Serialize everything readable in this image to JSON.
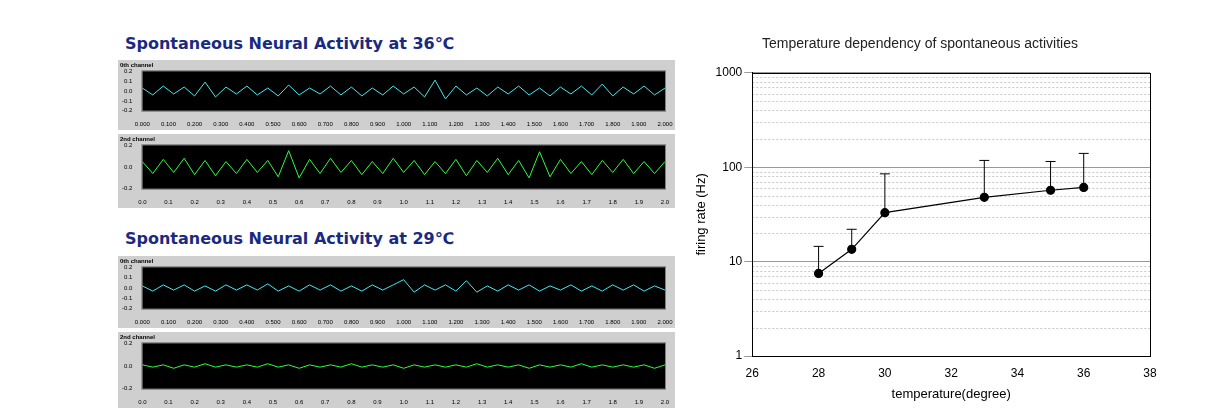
{
  "chart_data": [
    {
      "type": "line",
      "title": "Spontaneous Neural Activity at 36℃",
      "subtitle": "0th channel",
      "color": "#40e8f0",
      "x": [
        0,
        0.04,
        0.08,
        0.12,
        0.16,
        0.2,
        0.24,
        0.28,
        0.32,
        0.36,
        0.4,
        0.44,
        0.48,
        0.52,
        0.56,
        0.6,
        0.64,
        0.68,
        0.72,
        0.76,
        0.8,
        0.84,
        0.88,
        0.92,
        0.96,
        1,
        1.04,
        1.08,
        1.12,
        1.16,
        1.2,
        1.24,
        1.28,
        1.32,
        1.36,
        1.4,
        1.44,
        1.48,
        1.52,
        1.56,
        1.6,
        1.64,
        1.68,
        1.72,
        1.76,
        1.8,
        1.84,
        1.88,
        1.92,
        1.96,
        2
      ],
      "values": [
        0.03,
        -0.04,
        0.05,
        -0.03,
        0.04,
        -0.05,
        0.09,
        -0.06,
        0.04,
        -0.03,
        0.05,
        -0.04,
        0.03,
        -0.05,
        0.06,
        -0.04,
        0.03,
        -0.03,
        0.05,
        -0.04,
        0.04,
        -0.05,
        0.03,
        -0.04,
        0.05,
        -0.03,
        0.04,
        -0.06,
        0.11,
        -0.08,
        0.05,
        -0.04,
        0.03,
        -0.05,
        0.04,
        -0.03,
        0.05,
        -0.04,
        0.03,
        -0.05,
        0.04,
        -0.03,
        0.05,
        -0.04,
        0.07,
        -0.05,
        0.04,
        -0.03,
        0.05,
        -0.04,
        0.03
      ],
      "xlim": [
        0,
        2
      ],
      "xticks": [
        {
          "value": 0,
          "label": "0.000"
        },
        {
          "value": 0.1,
          "label": "0.100"
        },
        {
          "value": 0.2,
          "label": "0.200"
        },
        {
          "value": 0.3,
          "label": "0.300"
        },
        {
          "value": 0.4,
          "label": "0.400"
        },
        {
          "value": 0.5,
          "label": "0.500"
        },
        {
          "value": 0.6,
          "label": "0.600"
        },
        {
          "value": 0.7,
          "label": "0.700"
        },
        {
          "value": 0.8,
          "label": "0.800"
        },
        {
          "value": 0.9,
          "label": "0.900"
        },
        {
          "value": 1,
          "label": "1.000"
        },
        {
          "value": 1.1,
          "label": "1.100"
        },
        {
          "value": 1.2,
          "label": "1.200"
        },
        {
          "value": 1.3,
          "label": "1.300"
        },
        {
          "value": 1.4,
          "label": "1.400"
        },
        {
          "value": 1.5,
          "label": "1.500"
        },
        {
          "value": 1.6,
          "label": "1.600"
        },
        {
          "value": 1.7,
          "label": "1.700"
        },
        {
          "value": 1.8,
          "label": "1.800"
        },
        {
          "value": 1.9,
          "label": "1.900"
        },
        {
          "value": 2,
          "label": "2.000"
        }
      ],
      "ylim": [
        -0.2,
        0.2
      ],
      "yticks": [
        -0.2,
        -0.1,
        {
          "value": 0,
          "label": "0.0"
        },
        0.1,
        0.2
      ]
    },
    {
      "type": "line",
      "subtitle": "2nd channel",
      "color": "#2bff3a",
      "x": [
        0,
        0.04,
        0.08,
        0.12,
        0.16,
        0.2,
        0.24,
        0.28,
        0.32,
        0.36,
        0.4,
        0.44,
        0.48,
        0.52,
        0.56,
        0.6,
        0.64,
        0.68,
        0.72,
        0.76,
        0.8,
        0.84,
        0.88,
        0.92,
        0.96,
        1,
        1.04,
        1.08,
        1.12,
        1.16,
        1.2,
        1.24,
        1.28,
        1.32,
        1.36,
        1.4,
        1.44,
        1.48,
        1.52,
        1.56,
        1.6,
        1.64,
        1.68,
        1.72,
        1.76,
        1.8,
        1.84,
        1.88,
        1.92,
        1.96,
        2
      ],
      "values": [
        0.05,
        -0.06,
        0.07,
        -0.05,
        0.08,
        -0.07,
        0.06,
        -0.08,
        0.05,
        -0.06,
        0.07,
        -0.05,
        0.06,
        -0.09,
        0.15,
        -0.1,
        0.07,
        -0.06,
        0.08,
        -0.05,
        0.06,
        -0.07,
        0.05,
        -0.06,
        0.08,
        -0.05,
        0.06,
        -0.07,
        0.05,
        -0.06,
        0.07,
        -0.08,
        0.06,
        -0.05,
        0.08,
        -0.07,
        0.06,
        -0.1,
        0.14,
        -0.09,
        0.07,
        -0.06,
        0.05,
        -0.07,
        0.06,
        -0.05,
        0.07,
        -0.06,
        0.05,
        -0.06,
        0.05
      ],
      "xlim": [
        0,
        2
      ],
      "xticks": [
        {
          "value": 0,
          "label": "0.0"
        },
        0.1,
        0.2,
        0.3,
        0.4,
        0.5,
        0.6,
        0.7,
        0.8,
        0.9,
        {
          "value": 1,
          "label": "1.0"
        },
        1.1,
        1.2,
        1.3,
        1.4,
        1.5,
        1.6,
        1.7,
        1.8,
        1.9,
        {
          "value": 2,
          "label": "2.0"
        }
      ],
      "ylim": [
        -0.2,
        0.2
      ],
      "yticks": [
        -0.2,
        {
          "value": 0,
          "label": "0.0"
        },
        0.2
      ]
    },
    {
      "type": "line",
      "title": "Spontaneous Neural Activity at 29℃",
      "subtitle": "0th channel",
      "color": "#40e8f0",
      "x": [
        0,
        0.04,
        0.08,
        0.12,
        0.16,
        0.2,
        0.24,
        0.28,
        0.32,
        0.36,
        0.4,
        0.44,
        0.48,
        0.52,
        0.56,
        0.6,
        0.64,
        0.68,
        0.72,
        0.76,
        0.8,
        0.84,
        0.88,
        0.92,
        0.96,
        1,
        1.04,
        1.08,
        1.12,
        1.16,
        1.2,
        1.24,
        1.28,
        1.32,
        1.36,
        1.4,
        1.44,
        1.48,
        1.52,
        1.56,
        1.6,
        1.64,
        1.68,
        1.72,
        1.76,
        1.8,
        1.84,
        1.88,
        1.92,
        1.96,
        2
      ],
      "values": [
        0.02,
        -0.03,
        0.03,
        -0.02,
        0.03,
        -0.03,
        0.02,
        -0.03,
        0.03,
        -0.02,
        0.03,
        -0.02,
        0.04,
        -0.03,
        0.02,
        -0.03,
        0.03,
        -0.02,
        0.03,
        -0.03,
        0.02,
        -0.03,
        0.03,
        -0.02,
        0.03,
        0.08,
        -0.04,
        0.03,
        -0.02,
        0.03,
        -0.03,
        0.07,
        -0.04,
        0.02,
        -0.03,
        0.03,
        -0.02,
        0.03,
        -0.03,
        0.02,
        -0.02,
        0.03,
        -0.03,
        0.02,
        -0.03,
        0.03,
        -0.02,
        0.03,
        -0.03,
        0.02,
        -0.02
      ],
      "xlim": [
        0,
        2
      ],
      "xticks": [
        {
          "value": 0,
          "label": "0.000"
        },
        {
          "value": 0.1,
          "label": "0.100"
        },
        {
          "value": 0.2,
          "label": "0.200"
        },
        {
          "value": 0.3,
          "label": "0.300"
        },
        {
          "value": 0.4,
          "label": "0.400"
        },
        {
          "value": 0.5,
          "label": "0.500"
        },
        {
          "value": 0.6,
          "label": "0.600"
        },
        {
          "value": 0.7,
          "label": "0.700"
        },
        {
          "value": 0.8,
          "label": "0.800"
        },
        {
          "value": 0.9,
          "label": "0.900"
        },
        {
          "value": 1,
          "label": "1.000"
        },
        {
          "value": 1.1,
          "label": "1.100"
        },
        {
          "value": 1.2,
          "label": "1.200"
        },
        {
          "value": 1.3,
          "label": "1.300"
        },
        {
          "value": 1.4,
          "label": "1.400"
        },
        {
          "value": 1.5,
          "label": "1.500"
        },
        {
          "value": 1.6,
          "label": "1.600"
        },
        {
          "value": 1.7,
          "label": "1.700"
        },
        {
          "value": 1.8,
          "label": "1.800"
        },
        {
          "value": 1.9,
          "label": "1.900"
        },
        {
          "value": 2,
          "label": "2.000"
        }
      ],
      "ylim": [
        -0.2,
        0.2
      ],
      "yticks": [
        -0.2,
        -0.1,
        {
          "value": 0,
          "label": "0.0"
        },
        0.1,
        0.2
      ]
    },
    {
      "type": "line",
      "subtitle": "2nd channel",
      "color": "#2bff3a",
      "x": [
        0,
        0.04,
        0.08,
        0.12,
        0.16,
        0.2,
        0.24,
        0.28,
        0.32,
        0.36,
        0.4,
        0.44,
        0.48,
        0.52,
        0.56,
        0.6,
        0.64,
        0.68,
        0.72,
        0.76,
        0.8,
        0.84,
        0.88,
        0.92,
        0.96,
        1,
        1.04,
        1.08,
        1.12,
        1.16,
        1.2,
        1.24,
        1.28,
        1.32,
        1.36,
        1.4,
        1.44,
        1.48,
        1.52,
        1.56,
        1.6,
        1.64,
        1.68,
        1.72,
        1.76,
        1.8,
        1.84,
        1.88,
        1.92,
        1.96,
        2
      ],
      "values": [
        0.01,
        -0.01,
        0.01,
        -0.02,
        0.01,
        -0.01,
        0.02,
        -0.01,
        0.01,
        -0.01,
        0.01,
        -0.01,
        0.02,
        -0.01,
        0.01,
        -0.02,
        0.01,
        -0.01,
        0.01,
        -0.01,
        0.02,
        -0.01,
        0.01,
        -0.01,
        0.01,
        -0.02,
        0.01,
        -0.01,
        0.01,
        -0.01,
        0.01,
        -0.01,
        0.02,
        -0.01,
        0.01,
        -0.01,
        0.01,
        -0.02,
        0.01,
        -0.01,
        0.01,
        -0.01,
        0.02,
        -0.01,
        0.01,
        -0.01,
        0.01,
        -0.01,
        0.01,
        -0.02,
        0.01
      ],
      "xlim": [
        0,
        2
      ],
      "xticks": [
        {
          "value": 0,
          "label": "0.0"
        },
        0.1,
        0.2,
        0.3,
        0.4,
        0.5,
        0.6,
        0.7,
        0.8,
        0.9,
        {
          "value": 1,
          "label": "1.0"
        },
        1.1,
        1.2,
        1.3,
        1.4,
        1.5,
        1.6,
        1.7,
        1.8,
        1.9,
        {
          "value": 2,
          "label": "2.0"
        }
      ],
      "ylim": [
        -0.2,
        0.2
      ],
      "yticks": [
        -0.2,
        {
          "value": 0,
          "label": "0.0"
        },
        0.2
      ]
    },
    {
      "type": "line",
      "title": "Temperature dependency of spontaneous activities",
      "xlabel": "temperature(degree)",
      "ylabel": "firing rate (Hz)",
      "x": [
        28,
        29,
        30,
        33,
        35,
        36
      ],
      "values": [
        7.5,
        13.5,
        33,
        48,
        57,
        61
      ],
      "error_upper": [
        7,
        8.5,
        52,
        70,
        58,
        79
      ],
      "color": "#000000",
      "marker": "circle",
      "xlim": [
        26,
        38
      ],
      "xticks": [
        26,
        28,
        30,
        32,
        34,
        36,
        38
      ],
      "ylim": [
        1,
        1000
      ],
      "yticks": [
        1,
        10,
        100,
        1000
      ],
      "log": "y",
      "grid": true
    }
  ]
}
